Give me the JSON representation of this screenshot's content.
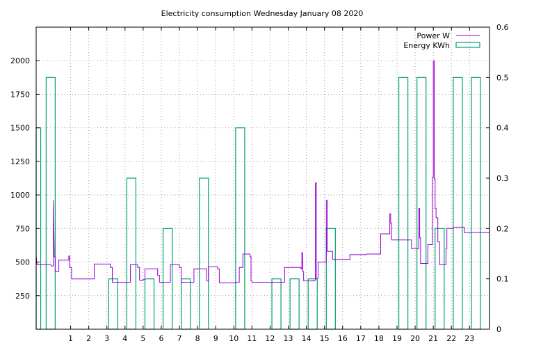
{
  "chart_data": {
    "type": "line",
    "title": "Electricity consumption Wednesday January 08 2020",
    "xlabel": "",
    "ylabel": "",
    "y2label": "",
    "grid": true,
    "legend_position": "top-right",
    "x": {
      "range": [
        -0.9,
        24.1
      ],
      "ticks": [
        1,
        2,
        3,
        4,
        5,
        6,
        7,
        8,
        9,
        10,
        11,
        12,
        13,
        14,
        15,
        16,
        17,
        18,
        19,
        20,
        21,
        22,
        23
      ],
      "tick_labels": [
        "1",
        "2",
        "3",
        "4",
        "5",
        "6",
        "7",
        "8",
        "9",
        "10",
        "11",
        "12",
        "13",
        "14",
        "15",
        "16",
        "17",
        "18",
        "19",
        "20",
        "21",
        "22",
        "23"
      ]
    },
    "y_left": {
      "range": [
        0,
        2250
      ],
      "ticks": [
        250,
        500,
        750,
        1000,
        1250,
        1500,
        1750,
        2000
      ],
      "tick_labels": [
        "250",
        "500",
        "750",
        "1000",
        "1250",
        "1500",
        "1750",
        "2000"
      ]
    },
    "y_right": {
      "range": [
        0,
        0.6
      ],
      "ticks": [
        0,
        0.1,
        0.2,
        0.3,
        0.4,
        0.5,
        0.6
      ],
      "tick_labels": [
        "0",
        "0.1",
        "0.2",
        "0.3",
        "0.4",
        "0.5",
        "0.6"
      ]
    },
    "series": [
      {
        "name": "Power W",
        "axis": "left",
        "color": "#9400d3",
        "style": "line",
        "points": [
          [
            -0.9,
            550
          ],
          [
            -0.85,
            480
          ],
          [
            -0.1,
            480
          ],
          [
            -0.05,
            470
          ],
          [
            0.05,
            470
          ],
          [
            0.05,
            960
          ],
          [
            0.1,
            540
          ],
          [
            0.15,
            540
          ],
          [
            0.15,
            430
          ],
          [
            0.35,
            430
          ],
          [
            0.35,
            515
          ],
          [
            0.9,
            515
          ],
          [
            0.9,
            545
          ],
          [
            0.95,
            545
          ],
          [
            0.95,
            460
          ],
          [
            1.05,
            460
          ],
          [
            1.05,
            375
          ],
          [
            2.3,
            375
          ],
          [
            2.3,
            485
          ],
          [
            3.2,
            485
          ],
          [
            3.2,
            460
          ],
          [
            3.3,
            460
          ],
          [
            3.3,
            350
          ],
          [
            4.3,
            350
          ],
          [
            4.3,
            480
          ],
          [
            4.7,
            480
          ],
          [
            4.7,
            460
          ],
          [
            4.8,
            460
          ],
          [
            4.8,
            365
          ],
          [
            5.0,
            365
          ],
          [
            5.0,
            370
          ],
          [
            5.1,
            370
          ],
          [
            5.1,
            450
          ],
          [
            5.8,
            450
          ],
          [
            5.8,
            400
          ],
          [
            5.9,
            400
          ],
          [
            5.9,
            350
          ],
          [
            6.5,
            350
          ],
          [
            6.5,
            480
          ],
          [
            7.0,
            480
          ],
          [
            7.0,
            460
          ],
          [
            7.1,
            460
          ],
          [
            7.1,
            350
          ],
          [
            7.8,
            350
          ],
          [
            7.8,
            450
          ],
          [
            8.5,
            450
          ],
          [
            8.5,
            360
          ],
          [
            8.6,
            360
          ],
          [
            8.6,
            465
          ],
          [
            9.1,
            465
          ],
          [
            9.1,
            450
          ],
          [
            9.2,
            450
          ],
          [
            9.2,
            345
          ],
          [
            10.1,
            345
          ],
          [
            10.1,
            350
          ],
          [
            10.3,
            350
          ],
          [
            10.3,
            460
          ],
          [
            10.5,
            460
          ],
          [
            10.5,
            560
          ],
          [
            10.9,
            560
          ],
          [
            10.9,
            540
          ],
          [
            10.95,
            540
          ],
          [
            10.95,
            360
          ],
          [
            11.0,
            360
          ],
          [
            11.0,
            350
          ],
          [
            12.8,
            350
          ],
          [
            12.8,
            460
          ],
          [
            13.7,
            460
          ],
          [
            13.7,
            450
          ],
          [
            13.75,
            450
          ],
          [
            13.75,
            570
          ],
          [
            13.8,
            570
          ],
          [
            13.8,
            430
          ],
          [
            13.85,
            430
          ],
          [
            13.85,
            360
          ],
          [
            14.4,
            360
          ],
          [
            14.4,
            365
          ],
          [
            14.5,
            365
          ],
          [
            14.5,
            1090
          ],
          [
            14.55,
            1090
          ],
          [
            14.55,
            380
          ],
          [
            14.65,
            380
          ],
          [
            14.65,
            500
          ],
          [
            15.1,
            500
          ],
          [
            15.1,
            960
          ],
          [
            15.15,
            960
          ],
          [
            15.15,
            580
          ],
          [
            15.45,
            580
          ],
          [
            15.45,
            520
          ],
          [
            16.4,
            520
          ],
          [
            16.4,
            555
          ],
          [
            17.3,
            555
          ],
          [
            17.3,
            560
          ],
          [
            18.1,
            560
          ],
          [
            18.1,
            710
          ],
          [
            18.6,
            710
          ],
          [
            18.6,
            860
          ],
          [
            18.65,
            860
          ],
          [
            18.65,
            790
          ],
          [
            18.7,
            790
          ],
          [
            18.7,
            665
          ],
          [
            19.8,
            665
          ],
          [
            19.8,
            600
          ],
          [
            20.2,
            600
          ],
          [
            20.2,
            900
          ],
          [
            20.25,
            900
          ],
          [
            20.25,
            680
          ],
          [
            20.3,
            680
          ],
          [
            20.3,
            490
          ],
          [
            20.7,
            490
          ],
          [
            20.7,
            630
          ],
          [
            20.95,
            630
          ],
          [
            20.95,
            1130
          ],
          [
            21.0,
            1130
          ],
          [
            21.0,
            2000
          ],
          [
            21.05,
            2000
          ],
          [
            21.05,
            1120
          ],
          [
            21.1,
            1120
          ],
          [
            21.1,
            900
          ],
          [
            21.15,
            900
          ],
          [
            21.15,
            830
          ],
          [
            21.25,
            830
          ],
          [
            21.25,
            650
          ],
          [
            21.35,
            650
          ],
          [
            21.35,
            480
          ],
          [
            21.7,
            480
          ],
          [
            21.7,
            600
          ],
          [
            21.75,
            600
          ],
          [
            21.75,
            750
          ],
          [
            22.1,
            750
          ],
          [
            22.1,
            760
          ],
          [
            22.7,
            760
          ],
          [
            22.7,
            720
          ],
          [
            22.9,
            720
          ],
          [
            23.0,
            720
          ],
          [
            24.1,
            720
          ]
        ]
      },
      {
        "name": "Energy KWh",
        "axis": "right",
        "color": "#009e73",
        "style": "boxes",
        "boxes": [
          [
            -0.9,
            -0.65,
            0.4
          ],
          [
            -0.35,
            0.15,
            0.5
          ],
          [
            3.1,
            3.6,
            0.1
          ],
          [
            4.1,
            4.6,
            0.3
          ],
          [
            5.1,
            5.6,
            0.1
          ],
          [
            6.1,
            6.6,
            0.2
          ],
          [
            7.1,
            7.6,
            0.1
          ],
          [
            8.1,
            8.6,
            0.3
          ],
          [
            10.1,
            10.6,
            0.4
          ],
          [
            12.1,
            12.6,
            0.1
          ],
          [
            13.1,
            13.6,
            0.1
          ],
          [
            14.1,
            14.6,
            0.1
          ],
          [
            15.1,
            15.6,
            0.2
          ],
          [
            19.1,
            19.6,
            0.5
          ],
          [
            20.1,
            20.6,
            0.5
          ],
          [
            21.1,
            21.6,
            0.2
          ],
          [
            22.1,
            22.6,
            0.5
          ],
          [
            23.1,
            23.6,
            0.5
          ],
          [
            24.1,
            24.1,
            0.5
          ]
        ]
      }
    ]
  }
}
